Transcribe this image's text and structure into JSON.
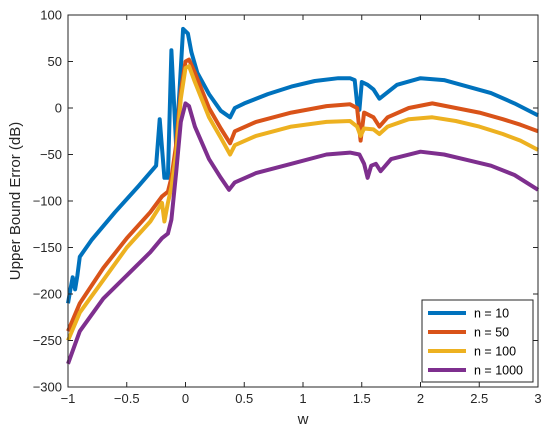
{
  "chart_data": {
    "type": "line",
    "title": "",
    "xlabel": "w",
    "ylabel": "Upper Bound Error (dB)",
    "xlim": [
      -1,
      3
    ],
    "ylim": [
      -300,
      100
    ],
    "xticks": [
      -1,
      -0.5,
      0,
      0.5,
      1,
      1.5,
      2,
      2.5,
      3
    ],
    "xtick_labels": [
      "−1",
      "−0.5",
      "0",
      "0.5",
      "1",
      "1.5",
      "2",
      "2.5",
      "3"
    ],
    "yticks": [
      -300,
      -250,
      -200,
      -150,
      -100,
      -50,
      0,
      50,
      100
    ],
    "ytick_labels": [
      "−300",
      "−250",
      "−200",
      "−150",
      "−100",
      "−50",
      "0",
      "50",
      "100"
    ],
    "grid": false,
    "legend_position": "bottom-right",
    "series": [
      {
        "name": "n = 10",
        "color": "#0072BD",
        "points": [
          [
            -1,
            -210
          ],
          [
            -0.98,
            -195
          ],
          [
            -0.96,
            -182
          ],
          [
            -0.94,
            -195
          ],
          [
            -0.92,
            -180
          ],
          [
            -0.9,
            -160
          ],
          [
            -0.8,
            -142
          ],
          [
            -0.6,
            -112
          ],
          [
            -0.4,
            -84
          ],
          [
            -0.25,
            -62
          ],
          [
            -0.22,
            -12
          ],
          [
            -0.18,
            -75
          ],
          [
            -0.15,
            -75
          ],
          [
            -0.12,
            62
          ],
          [
            -0.08,
            -40
          ],
          [
            -0.05,
            20
          ],
          [
            -0.02,
            85
          ],
          [
            0.02,
            80
          ],
          [
            0.05,
            60
          ],
          [
            0.1,
            38
          ],
          [
            0.2,
            15
          ],
          [
            0.3,
            -3
          ],
          [
            0.38,
            -10
          ],
          [
            0.42,
            0
          ],
          [
            0.5,
            5
          ],
          [
            0.7,
            15
          ],
          [
            0.9,
            23
          ],
          [
            1.1,
            29
          ],
          [
            1.3,
            32
          ],
          [
            1.4,
            32
          ],
          [
            1.44,
            30
          ],
          [
            1.46,
            5
          ],
          [
            1.48,
            -2
          ],
          [
            1.5,
            28
          ],
          [
            1.55,
            25
          ],
          [
            1.6,
            20
          ],
          [
            1.65,
            10
          ],
          [
            1.7,
            15
          ],
          [
            1.8,
            25
          ],
          [
            2.0,
            32
          ],
          [
            2.2,
            30
          ],
          [
            2.4,
            23
          ],
          [
            2.6,
            16
          ],
          [
            2.8,
            5
          ],
          [
            3.0,
            -8
          ]
        ]
      },
      {
        "name": "n = 50",
        "color": "#D95319",
        "points": [
          [
            -1,
            -240
          ],
          [
            -0.9,
            -210
          ],
          [
            -0.7,
            -172
          ],
          [
            -0.5,
            -140
          ],
          [
            -0.3,
            -112
          ],
          [
            -0.2,
            -95
          ],
          [
            -0.15,
            -90
          ],
          [
            -0.12,
            -75
          ],
          [
            -0.08,
            -40
          ],
          [
            -0.04,
            18
          ],
          [
            0,
            50
          ],
          [
            0.03,
            52
          ],
          [
            0.08,
            38
          ],
          [
            0.2,
            0
          ],
          [
            0.3,
            -22
          ],
          [
            0.38,
            -38
          ],
          [
            0.42,
            -25
          ],
          [
            0.6,
            -15
          ],
          [
            0.9,
            -5
          ],
          [
            1.2,
            2
          ],
          [
            1.4,
            4
          ],
          [
            1.46,
            0
          ],
          [
            1.49,
            -35
          ],
          [
            1.52,
            -5
          ],
          [
            1.6,
            -10
          ],
          [
            1.65,
            -20
          ],
          [
            1.72,
            -10
          ],
          [
            1.9,
            0
          ],
          [
            2.1,
            5
          ],
          [
            2.3,
            0
          ],
          [
            2.5,
            -5
          ],
          [
            2.7,
            -12
          ],
          [
            2.85,
            -18
          ],
          [
            3.0,
            -25
          ]
        ]
      },
      {
        "name": "n = 100",
        "color": "#EDB120",
        "points": [
          [
            -1,
            -250
          ],
          [
            -0.9,
            -220
          ],
          [
            -0.7,
            -185
          ],
          [
            -0.5,
            -150
          ],
          [
            -0.3,
            -122
          ],
          [
            -0.2,
            -102
          ],
          [
            -0.18,
            -122
          ],
          [
            -0.15,
            -102
          ],
          [
            -0.12,
            -85
          ],
          [
            -0.08,
            -50
          ],
          [
            -0.04,
            10
          ],
          [
            0,
            43
          ],
          [
            0.03,
            45
          ],
          [
            0.08,
            28
          ],
          [
            0.2,
            -10
          ],
          [
            0.3,
            -32
          ],
          [
            0.38,
            -50
          ],
          [
            0.42,
            -40
          ],
          [
            0.6,
            -30
          ],
          [
            0.9,
            -20
          ],
          [
            1.2,
            -15
          ],
          [
            1.4,
            -14
          ],
          [
            1.46,
            -20
          ],
          [
            1.49,
            -30
          ],
          [
            1.52,
            -22
          ],
          [
            1.6,
            -23
          ],
          [
            1.65,
            -28
          ],
          [
            1.72,
            -20
          ],
          [
            1.9,
            -12
          ],
          [
            2.1,
            -10
          ],
          [
            2.3,
            -14
          ],
          [
            2.5,
            -20
          ],
          [
            2.7,
            -28
          ],
          [
            2.85,
            -35
          ],
          [
            3.0,
            -45
          ]
        ]
      },
      {
        "name": "n = 1000",
        "color": "#7E2F8E",
        "points": [
          [
            -1,
            -275
          ],
          [
            -0.9,
            -240
          ],
          [
            -0.7,
            -205
          ],
          [
            -0.5,
            -180
          ],
          [
            -0.3,
            -155
          ],
          [
            -0.2,
            -140
          ],
          [
            -0.15,
            -135
          ],
          [
            -0.12,
            -120
          ],
          [
            -0.08,
            -70
          ],
          [
            -0.04,
            -15
          ],
          [
            0,
            5
          ],
          [
            0.03,
            2
          ],
          [
            0.08,
            -20
          ],
          [
            0.2,
            -55
          ],
          [
            0.3,
            -75
          ],
          [
            0.37,
            -88
          ],
          [
            0.42,
            -80
          ],
          [
            0.6,
            -70
          ],
          [
            0.9,
            -60
          ],
          [
            1.2,
            -50
          ],
          [
            1.4,
            -48
          ],
          [
            1.48,
            -50
          ],
          [
            1.52,
            -60
          ],
          [
            1.55,
            -75
          ],
          [
            1.58,
            -62
          ],
          [
            1.62,
            -60
          ],
          [
            1.66,
            -68
          ],
          [
            1.75,
            -55
          ],
          [
            2.0,
            -47
          ],
          [
            2.2,
            -50
          ],
          [
            2.4,
            -56
          ],
          [
            2.6,
            -62
          ],
          [
            2.8,
            -72
          ],
          [
            3.0,
            -88
          ]
        ]
      }
    ]
  }
}
